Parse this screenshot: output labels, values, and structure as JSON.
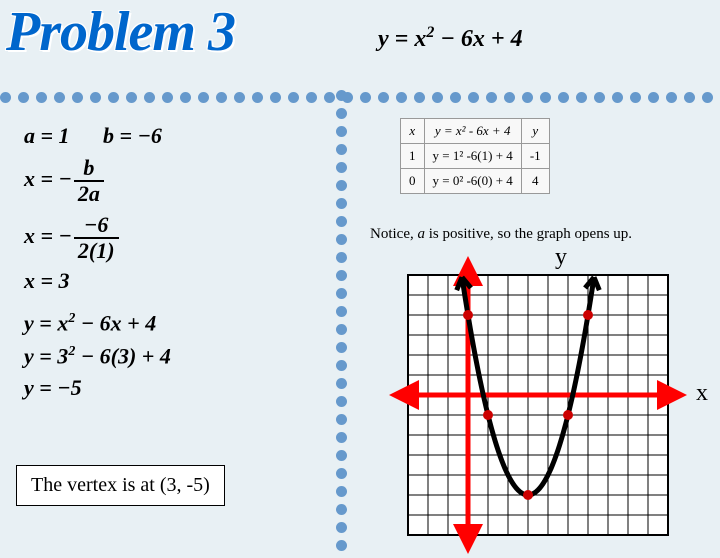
{
  "title": "Problem 3",
  "main_eq": "y = x² − 6x + 4",
  "coeffs": {
    "a": "a = 1",
    "b": "b = −6"
  },
  "vertex_formula": {
    "lhs": "x = −",
    "num": "b",
    "den": "2a"
  },
  "vertex_sub": {
    "lhs": "x = −",
    "num": "−6",
    "den": "2(1)"
  },
  "x_val": "x = 3",
  "y_eq1": "y = x² − 6x + 4",
  "y_eq2": "y = 3² − 6(3) + 4",
  "y_val": "y = −5",
  "vertex_text": "The vertex is at (3, -5)",
  "table": {
    "headers": [
      "x",
      "y = x² - 6x + 4",
      "y"
    ],
    "rows": [
      [
        "1",
        "y = 1² -6(1) + 4",
        "-1"
      ],
      [
        "0",
        "y = 0² -6(0) + 4",
        "4"
      ]
    ]
  },
  "notice": {
    "pre": "Notice, ",
    "a": "a",
    "post": " is positive, so the graph opens up."
  },
  "axes": {
    "y": "y",
    "x": "x"
  },
  "graph": {
    "grid_n": 13,
    "origin_col": 3,
    "origin_row": 6,
    "cell": 20,
    "bg": "#ffffff",
    "grid_color": "#000000",
    "x_axis_color": "#ff0000",
    "y_axis_color": "#ff0000",
    "curve_color": "#000000",
    "curve_width": 5,
    "point_color": "#cc0000",
    "point_r": 5,
    "vertex": [
      3,
      -5
    ],
    "points": [
      [
        0,
        4
      ],
      [
        1,
        -1
      ],
      [
        5,
        -1
      ],
      [
        6,
        4
      ],
      [
        3,
        -5
      ]
    ],
    "parabola": {
      "a": 1,
      "h": 3,
      "k": -5,
      "xmin": -0.3,
      "xmax": 6.3
    }
  },
  "colors": {
    "dot": "#6699cc",
    "title": "#0066cc",
    "bg": "#e8f0f4"
  }
}
